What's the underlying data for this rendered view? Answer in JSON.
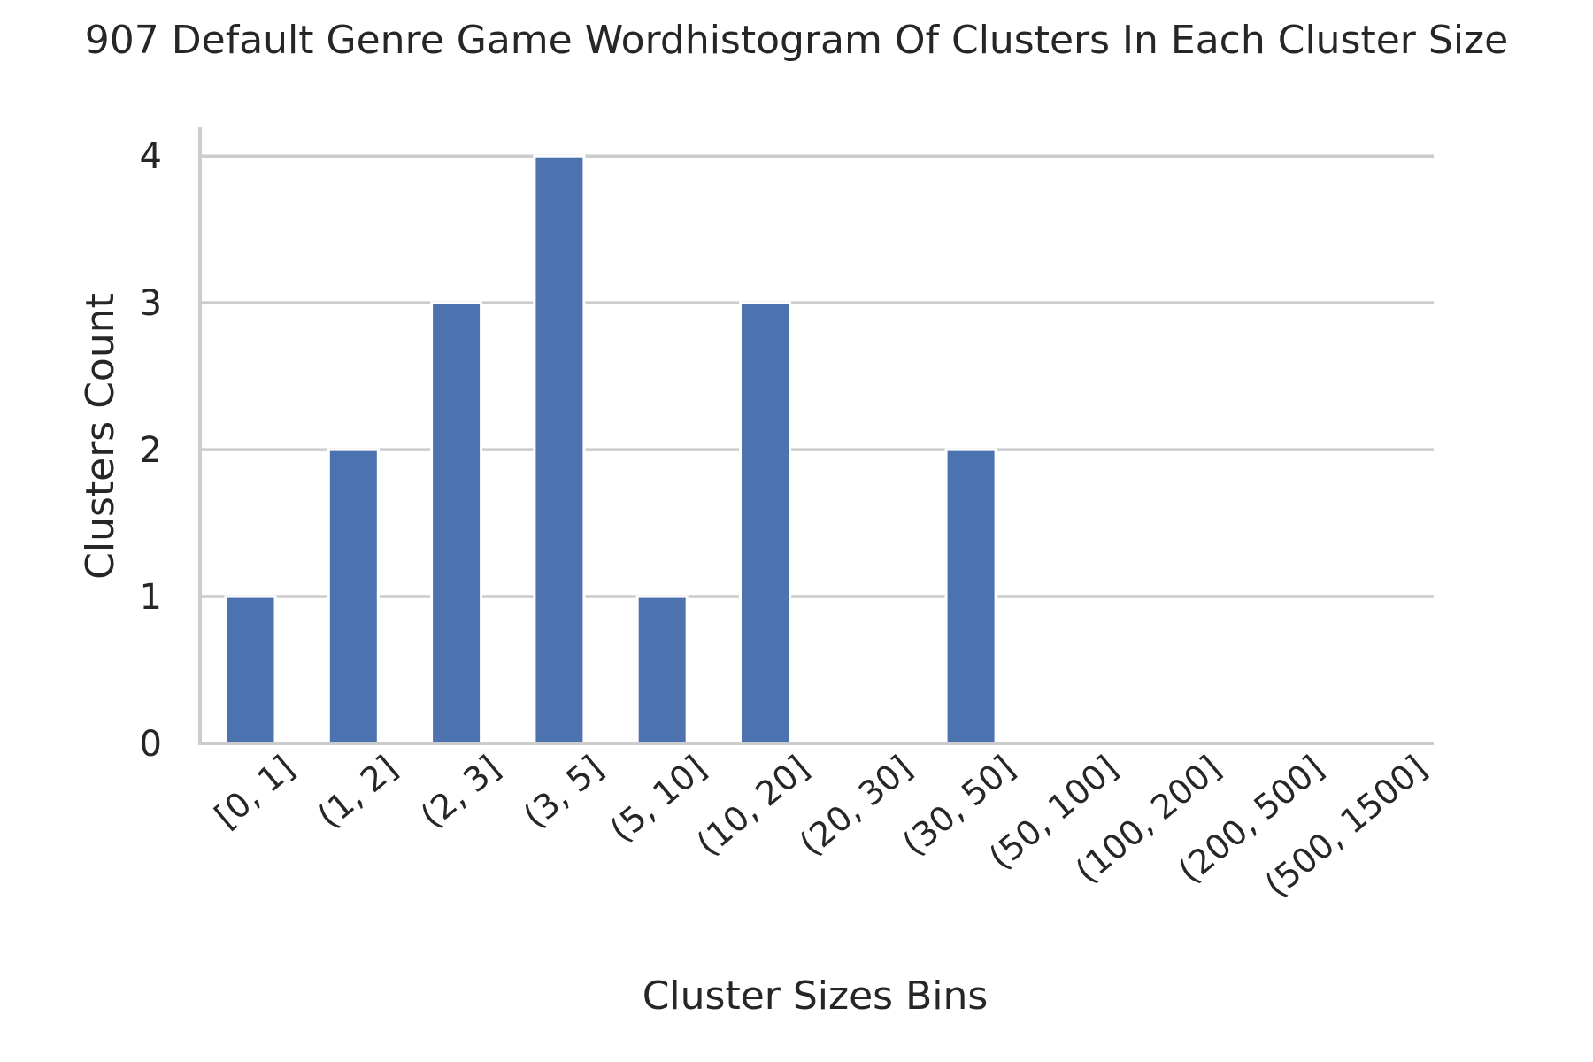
{
  "chart_data": {
    "type": "bar",
    "title": "907 Default Genre Game Wordhistogram Of Clusters In Each Cluster Size",
    "xlabel": "Cluster Sizes Bins",
    "ylabel": "Clusters Count",
    "categories": [
      "[0, 1]",
      "(1, 2]",
      "(2, 3]",
      "(3, 5]",
      "(5, 10]",
      "(10, 20]",
      "(20, 30]",
      "(30, 50]",
      "(50, 100]",
      "(100, 200]",
      "(200, 500]",
      "(500, 1500]"
    ],
    "values": [
      1,
      2,
      3,
      4,
      1,
      3,
      0,
      2,
      0,
      0,
      0,
      0
    ],
    "yticks": [
      "0",
      "1",
      "2",
      "3",
      "4"
    ],
    "ylim": [
      0,
      4.2
    ],
    "grid": "horizontal",
    "bar_color": "#4c72b0",
    "grid_color": "#cccccc",
    "x_tick_rotation": 40
  }
}
